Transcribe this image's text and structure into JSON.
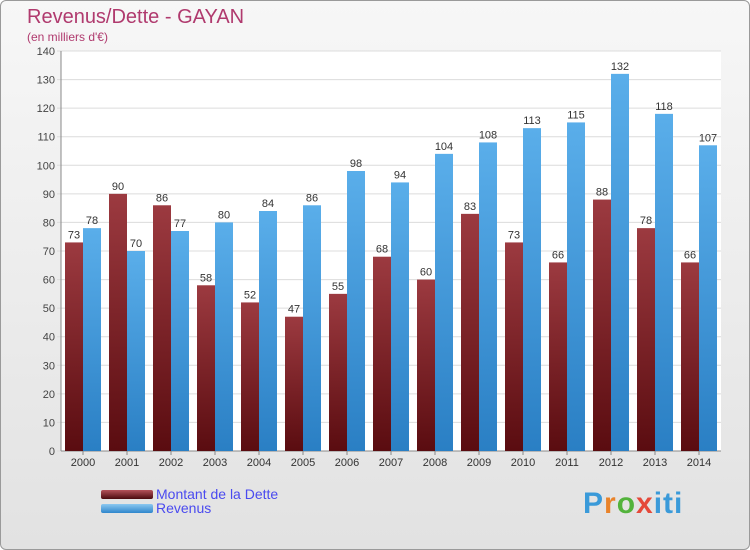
{
  "header": {
    "title": "Revenus/Dette - GAYAN",
    "subtitle": "(en milliers d'€)"
  },
  "logo": {
    "text": "Proxiti"
  },
  "colors": {
    "dette": "#7a1f23",
    "revenus": "#3f9be0",
    "title": "#b03a6e",
    "legend_text": "#4a4aef"
  },
  "chart_data": {
    "type": "bar",
    "title": "Revenus/Dette - GAYAN",
    "subtitle": "(en milliers d'€)",
    "categories": [
      "2000",
      "2001",
      "2002",
      "2003",
      "2004",
      "2005",
      "2006",
      "2007",
      "2008",
      "2009",
      "2010",
      "2011",
      "2012",
      "2013",
      "2014"
    ],
    "series": [
      {
        "name": "Montant de la Dette",
        "values": [
          73,
          90,
          86,
          58,
          52,
          47,
          55,
          68,
          60,
          83,
          73,
          66,
          88,
          78,
          66
        ]
      },
      {
        "name": "Revenus",
        "values": [
          78,
          70,
          77,
          80,
          84,
          86,
          98,
          94,
          104,
          108,
          113,
          115,
          132,
          118,
          107
        ]
      }
    ],
    "ylim": [
      0,
      140
    ],
    "yticks": [
      0,
      10,
      20,
      30,
      40,
      50,
      60,
      70,
      80,
      90,
      100,
      110,
      120,
      130,
      140
    ],
    "grid": true,
    "legend": "bottom-left"
  }
}
